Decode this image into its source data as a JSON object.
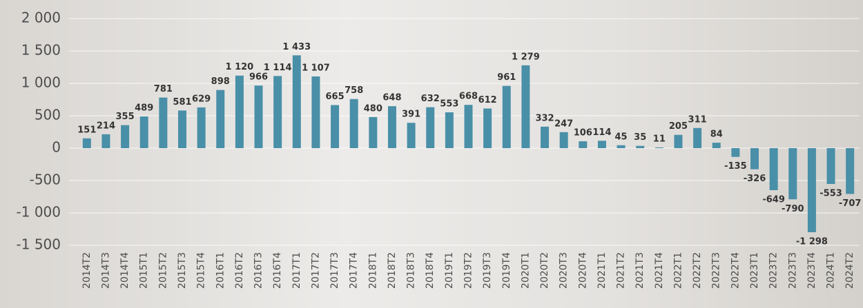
{
  "chart_data": {
    "type": "bar",
    "categories": [
      "2014T2",
      "2014T3",
      "2014T4",
      "2015T1",
      "2015T2",
      "2015T3",
      "2015T4",
      "2016T1",
      "2016T2",
      "2016T3",
      "2016T4",
      "2017T1",
      "2017T2",
      "2017T3",
      "2017T4",
      "2018T1",
      "2018T2",
      "2018T3",
      "2018T4",
      "2019T1",
      "2019T2",
      "2019T3",
      "2019T4",
      "2020T1",
      "2020T2",
      "2020T3",
      "2020T4",
      "2021T1",
      "2021T2",
      "2021T3",
      "2021T4",
      "2022T1",
      "2022T2",
      "2022T3",
      "2022T4",
      "2023T1",
      "2023T2",
      "2023T3",
      "2023T4",
      "2024T1",
      "2024T2"
    ],
    "values": [
      151,
      214,
      355,
      489,
      781,
      581,
      629,
      898,
      1120,
      966,
      1114,
      1433,
      1107,
      665,
      758,
      480,
      648,
      391,
      632,
      553,
      668,
      612,
      961,
      1279,
      332,
      247,
      106,
      114,
      45,
      35,
      11,
      205,
      311,
      84,
      -135,
      -326,
      -649,
      -790,
      -1298,
      -553,
      -707
    ],
    "value_labels": [
      "151",
      "214",
      "355",
      "489",
      "781",
      "581",
      "629",
      "898",
      "1 120",
      "966",
      "1 114",
      "1 433",
      "1 107",
      "665",
      "758",
      "480",
      "648",
      "391",
      "632",
      "553",
      "668",
      "612",
      "961",
      "1 279",
      "332",
      "247",
      "106",
      "114",
      "45",
      "35",
      "11",
      "205",
      "311",
      "84",
      "-135",
      "-326",
      "-649",
      "-790",
      "-1 298",
      "-553",
      "-707"
    ],
    "color": "#4a8fa8",
    "ylim": [
      -1500,
      2000
    ],
    "yticks": [
      {
        "value": -1500,
        "label": "-1 500"
      },
      {
        "value": -1000,
        "label": "-1 000"
      },
      -500,
      0,
      500,
      {
        "value": 1000,
        "label": "1 000"
      },
      {
        "value": 1500,
        "label": "1 500"
      },
      {
        "value": 2000,
        "label": "2 000"
      }
    ],
    "grid": true
  }
}
